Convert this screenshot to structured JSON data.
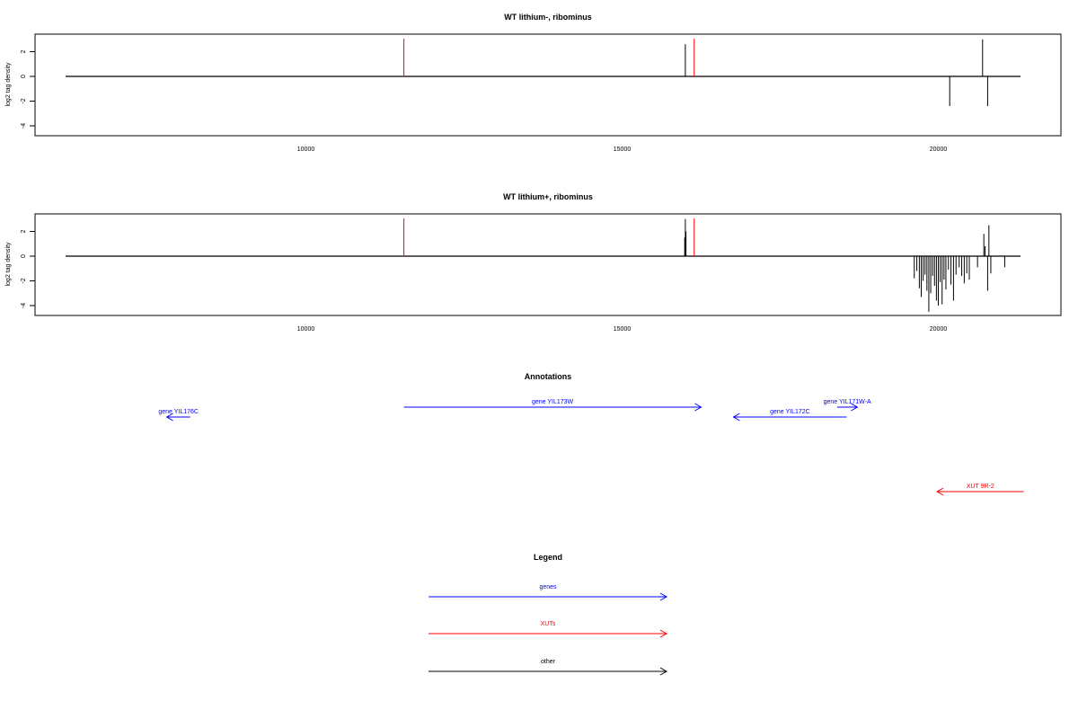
{
  "colors": {
    "gene": "#0000ff",
    "xut": "#ff0000",
    "other": "#000000",
    "axis": "#000000"
  },
  "chart_data": [
    {
      "type": "bar",
      "title": "WT lithium-, ribominus",
      "ylabel": "log2 tag density",
      "xlim": [
        6000,
        21500
      ],
      "ylim": [
        -4.5,
        3.3
      ],
      "x_ticks": [
        10000,
        15000,
        20000
      ],
      "y_ticks": [
        -4,
        -2,
        0,
        2
      ],
      "baseline": {
        "from": 6200,
        "to": 21300,
        "y": 0
      },
      "boundaries": [
        11550,
        16140
      ],
      "values": [
        {
          "x": 16000,
          "y": 2.6
        },
        {
          "x": 20180,
          "y": -2.4
        },
        {
          "x": 20700,
          "y": 3.0
        },
        {
          "x": 20780,
          "y": -2.4
        }
      ]
    },
    {
      "type": "bar",
      "title": "WT lithium+, ribominus",
      "ylabel": "log2 tag density",
      "xlim": [
        6000,
        21500
      ],
      "ylim": [
        -4.5,
        3.3
      ],
      "x_ticks": [
        10000,
        15000,
        20000
      ],
      "y_ticks": [
        -4,
        -2,
        0,
        2
      ],
      "baseline": {
        "from": 6200,
        "to": 21300,
        "y": 0
      },
      "boundaries": [
        11550,
        16140
      ],
      "values": [
        {
          "x": 15990,
          "y": 1.5
        },
        {
          "x": 16000,
          "y": 3.0
        },
        {
          "x": 16010,
          "y": 2.0
        },
        {
          "x": 19620,
          "y": -1.8
        },
        {
          "x": 19660,
          "y": -1.2
        },
        {
          "x": 19700,
          "y": -2.6
        },
        {
          "x": 19730,
          "y": -3.3
        },
        {
          "x": 19760,
          "y": -2.0
        },
        {
          "x": 19790,
          "y": -1.5
        },
        {
          "x": 19820,
          "y": -2.8
        },
        {
          "x": 19850,
          "y": -4.5
        },
        {
          "x": 19880,
          "y": -3.0
        },
        {
          "x": 19910,
          "y": -1.6
        },
        {
          "x": 19940,
          "y": -2.4
        },
        {
          "x": 19970,
          "y": -3.6
        },
        {
          "x": 20000,
          "y": -4.0
        },
        {
          "x": 20030,
          "y": -2.1
        },
        {
          "x": 20060,
          "y": -3.9
        },
        {
          "x": 20090,
          "y": -1.9
        },
        {
          "x": 20120,
          "y": -2.7
        },
        {
          "x": 20160,
          "y": -1.1
        },
        {
          "x": 20200,
          "y": -2.3
        },
        {
          "x": 20240,
          "y": -3.6
        },
        {
          "x": 20280,
          "y": -1.5
        },
        {
          "x": 20330,
          "y": -0.9
        },
        {
          "x": 20370,
          "y": -1.6
        },
        {
          "x": 20410,
          "y": -2.2
        },
        {
          "x": 20450,
          "y": -1.4
        },
        {
          "x": 20490,
          "y": -1.9
        },
        {
          "x": 20620,
          "y": -0.9
        },
        {
          "x": 20720,
          "y": 1.8
        },
        {
          "x": 20740,
          "y": 0.8
        },
        {
          "x": 20780,
          "y": -2.8
        },
        {
          "x": 20800,
          "y": 2.5
        },
        {
          "x": 20830,
          "y": -1.4
        },
        {
          "x": 21050,
          "y": -0.9
        }
      ]
    }
  ],
  "annotations": {
    "title": "Annotations",
    "items": [
      {
        "label": "gene YIL176C",
        "kind": "gene",
        "start": 8170,
        "end": 7800,
        "track": 1
      },
      {
        "label": "gene YIL173W",
        "kind": "gene",
        "start": 11550,
        "end": 16250,
        "track": 0
      },
      {
        "label": "gene YIL172C",
        "kind": "gene",
        "start": 18550,
        "end": 16760,
        "track": 1
      },
      {
        "label": "gene YIL171W-A",
        "kind": "gene",
        "start": 18400,
        "end": 18720,
        "track": 0
      },
      {
        "label": "XUT 9R-2",
        "kind": "xut",
        "start": 21350,
        "end": 19980,
        "track": 2
      }
    ]
  },
  "legend": {
    "title": "Legend",
    "items": [
      {
        "label": "genes",
        "kind": "gene"
      },
      {
        "label": "XUTs",
        "kind": "xut"
      },
      {
        "label": "other",
        "kind": "other"
      }
    ]
  }
}
